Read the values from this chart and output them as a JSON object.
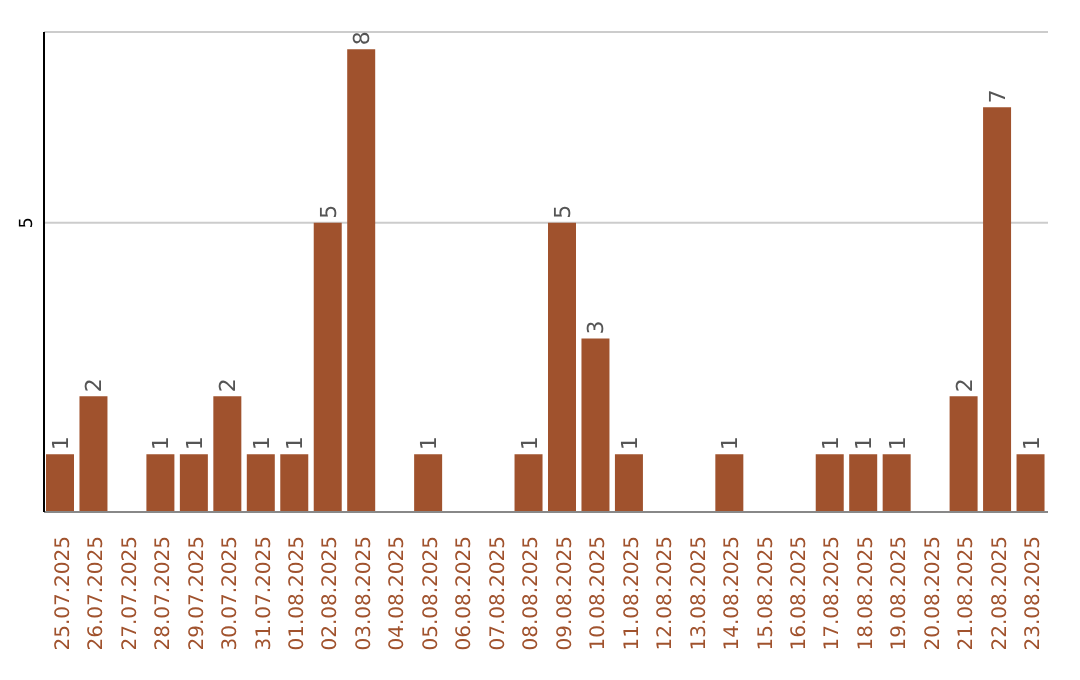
{
  "chart_data": {
    "type": "bar",
    "categories": [
      "25.07.2025",
      "26.07.2025",
      "27.07.2025",
      "28.07.2025",
      "29.07.2025",
      "30.07.2025",
      "31.07.2025",
      "01.08.2025",
      "02.08.2025",
      "03.08.2025",
      "04.08.2025",
      "05.08.2025",
      "06.08.2025",
      "07.08.2025",
      "08.08.2025",
      "09.08.2025",
      "10.08.2025",
      "11.08.2025",
      "12.08.2025",
      "13.08.2025",
      "14.08.2025",
      "15.08.2025",
      "16.08.2025",
      "17.08.2025",
      "18.08.2025",
      "19.08.2025",
      "20.08.2025",
      "21.08.2025",
      "22.08.2025",
      "23.08.2025"
    ],
    "values": [
      1,
      2,
      0,
      1,
      1,
      2,
      1,
      1,
      5,
      8,
      0,
      1,
      0,
      0,
      1,
      5,
      3,
      1,
      0,
      0,
      1,
      0,
      0,
      1,
      1,
      1,
      0,
      2,
      7,
      1
    ],
    "value_labels": [
      "1",
      "2",
      null,
      "1",
      "1",
      "2",
      "1",
      "1",
      "5",
      "8",
      null,
      "1",
      null,
      null,
      "1",
      "5",
      "3",
      "1",
      null,
      null,
      "1",
      null,
      null,
      "1",
      "1",
      "1",
      null,
      "2",
      "7",
      "1"
    ],
    "color": "#a0522d",
    "ylim": [
      0,
      8.3
    ],
    "yticks": [
      5
    ],
    "grid": "y"
  }
}
